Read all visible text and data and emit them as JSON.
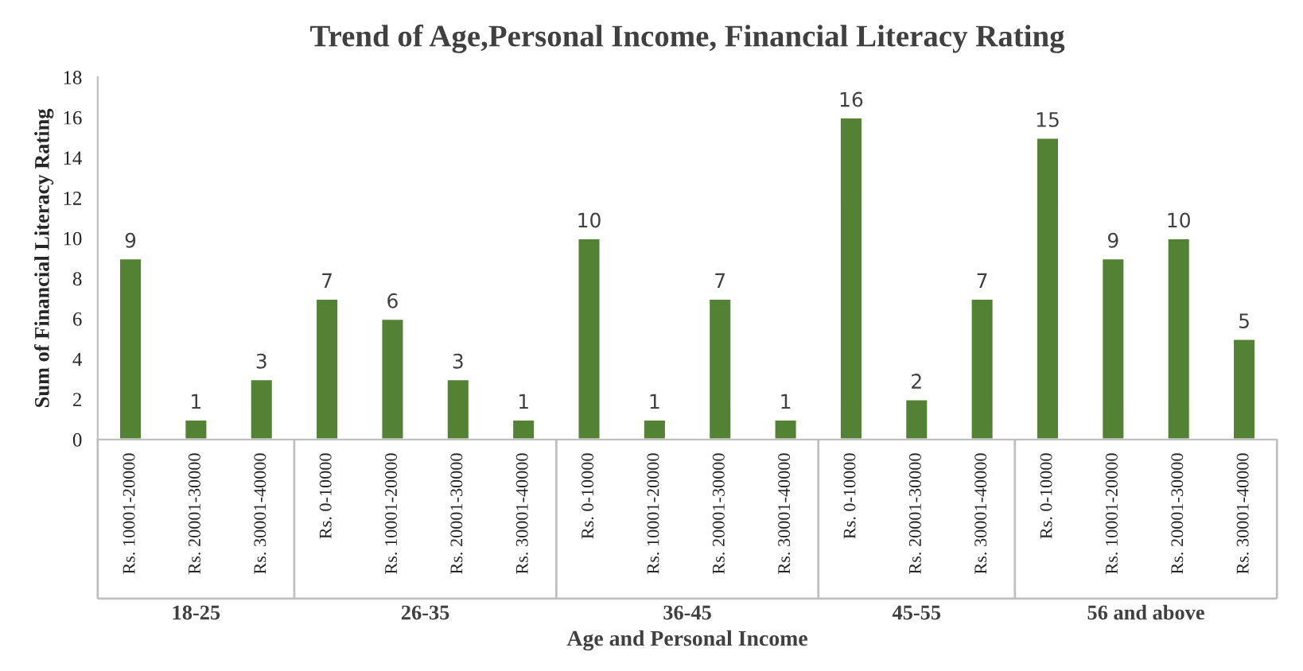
{
  "chart_data": {
    "type": "bar",
    "title": "Trend of Age,Personal Income, Financial Literacy Rating",
    "ylabel": "Sum of Financial Literacy Rating",
    "xlabel": "Age and Personal Income",
    "annotations": [
      "18-25",
      "26-35",
      "36-45",
      "45-55",
      "56 and above"
    ],
    "categories": [
      "Rs. 10001-20000",
      "Rs. 20001-30000",
      "Rs. 30001-40000",
      "Rs. 0-10000",
      "Rs. 10001-20000",
      "Rs. 20001-30000",
      "Rs. 30001-40000",
      "Rs. 0-10000",
      "Rs. 10001-20000",
      "Rs. 20001-30000",
      "Rs. 30001-40000",
      "Rs. 0-10000",
      "Rs. 20001-30000",
      "Rs. 30001-40000",
      "Rs. 0-10000",
      "Rs. 10001-20000",
      "Rs. 20001-30000",
      "Rs. 30001-40000"
    ],
    "values": [
      9,
      1,
      3,
      7,
      6,
      3,
      1,
      10,
      1,
      7,
      1,
      16,
      2,
      7,
      15,
      9,
      10,
      5
    ],
    "color": "#548235",
    "ylim": [
      0,
      18
    ],
    "yticks": [
      0,
      2,
      4,
      6,
      8,
      10,
      12,
      14,
      16,
      18
    ],
    "data_labels": true,
    "grid": false,
    "legend": false
  }
}
